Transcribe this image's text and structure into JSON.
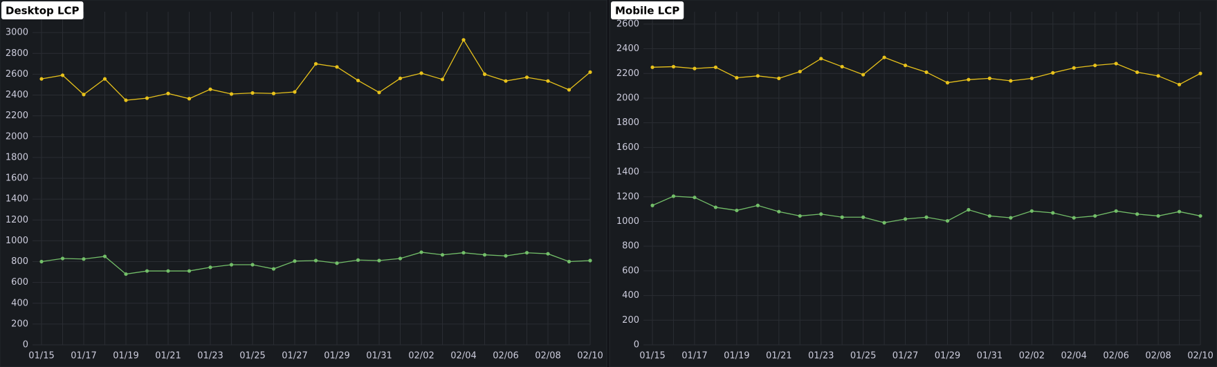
{
  "chart_data": [
    {
      "type": "line",
      "title": "Desktop LCP",
      "categories": [
        "01/15",
        null,
        "01/17",
        null,
        "01/19",
        null,
        "01/21",
        null,
        "01/23",
        null,
        "01/25",
        null,
        "01/27",
        null,
        "01/29",
        null,
        "01/31",
        null,
        "02/02",
        null,
        "02/04",
        null,
        "02/06",
        null,
        "02/08",
        null,
        "02/10"
      ],
      "series": [
        {
          "color": "#e8c21b",
          "values": [
            2555,
            2590,
            2405,
            2555,
            2350,
            2370,
            2415,
            2365,
            2455,
            2410,
            2420,
            2415,
            2430,
            2700,
            2670,
            2540,
            2425,
            2560,
            2610,
            2550,
            2930,
            2600,
            2535,
            2570,
            2535,
            2450,
            2620
          ]
        },
        {
          "color": "#73bf69",
          "values": [
            800,
            830,
            825,
            850,
            680,
            710,
            710,
            710,
            745,
            770,
            770,
            730,
            805,
            810,
            785,
            815,
            810,
            830,
            890,
            865,
            885,
            865,
            855,
            885,
            875,
            800,
            810
          ]
        }
      ],
      "ylim": [
        0,
        3200
      ],
      "yticks": [
        0,
        200,
        400,
        600,
        800,
        1000,
        1200,
        1400,
        1600,
        1800,
        2000,
        2200,
        2400,
        2600,
        2800,
        3000
      ],
      "grid": true
    },
    {
      "type": "line",
      "title": "Mobile LCP",
      "categories": [
        "01/15",
        null,
        "01/17",
        null,
        "01/19",
        null,
        "01/21",
        null,
        "01/23",
        null,
        "01/25",
        null,
        "01/27",
        null,
        "01/29",
        null,
        "01/31",
        null,
        "02/02",
        null,
        "02/04",
        null,
        "02/06",
        null,
        "02/08",
        null,
        "02/10"
      ],
      "series": [
        {
          "color": "#e8c21b",
          "values": [
            2250,
            2255,
            2240,
            2250,
            2165,
            2180,
            2160,
            2215,
            2320,
            2255,
            2190,
            2330,
            2265,
            2210,
            2125,
            2150,
            2160,
            2140,
            2160,
            2205,
            2245,
            2265,
            2280,
            2210,
            2180,
            2110,
            2200
          ]
        },
        {
          "color": "#73bf69",
          "values": [
            1130,
            1205,
            1195,
            1115,
            1090,
            1130,
            1080,
            1045,
            1060,
            1035,
            1035,
            990,
            1020,
            1035,
            1005,
            1095,
            1045,
            1030,
            1085,
            1070,
            1030,
            1045,
            1085,
            1060,
            1045,
            1080,
            1045
          ]
        }
      ],
      "ylim": [
        0,
        2700
      ],
      "yticks": [
        0,
        200,
        400,
        600,
        800,
        1000,
        1200,
        1400,
        1600,
        1800,
        2000,
        2200,
        2400,
        2600
      ],
      "grid": true
    }
  ]
}
